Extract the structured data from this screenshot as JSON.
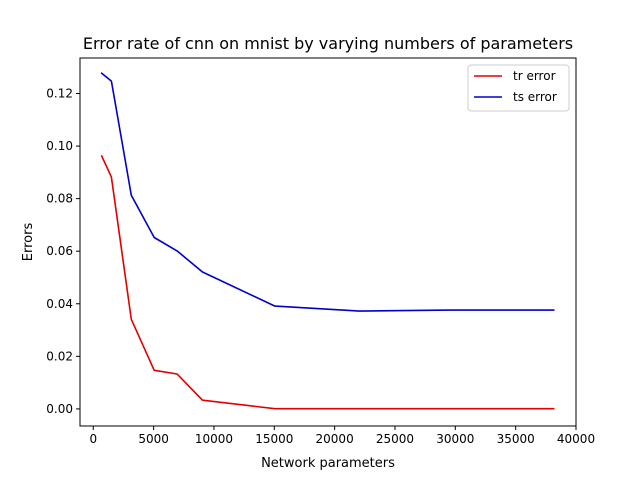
{
  "chart_data": {
    "type": "line",
    "title": "Error rate of cnn on mnist by varying numbers of parameters",
    "xlabel": "Network parameters",
    "ylabel": "Errors",
    "xlim": [
      -1100,
      40000
    ],
    "ylim": [
      -0.0065,
      0.1335
    ],
    "x_ticks": [
      0,
      5000,
      10000,
      15000,
      20000,
      25000,
      30000,
      35000,
      40000
    ],
    "y_ticks": [
      0.0,
      0.02,
      0.04,
      0.06,
      0.08,
      0.1,
      0.12
    ],
    "x_tick_labels": [
      "0",
      "5000",
      "10000",
      "15000",
      "20000",
      "25000",
      "30000",
      "35000",
      "40000"
    ],
    "y_tick_labels": [
      "0.00",
      "0.02",
      "0.04",
      "0.06",
      "0.08",
      "0.10",
      "0.12"
    ],
    "grid": false,
    "legend_position": "top-right",
    "series": [
      {
        "name": "tr error",
        "color": "#e00000",
        "x": [
          700,
          1500,
          3150,
          5050,
          6950,
          9050,
          15050,
          22050,
          29550,
          38150
        ],
        "y": [
          0.0962,
          0.0882,
          0.0341,
          0.0147,
          0.0133,
          0.0033,
          0.0001,
          0.0001,
          0.0001,
          0.0001
        ]
      },
      {
        "name": "ts error",
        "color": "#0000cc",
        "x": [
          700,
          1500,
          3150,
          5050,
          6950,
          9050,
          15050,
          22050,
          29550,
          38150
        ],
        "y": [
          0.1277,
          0.1247,
          0.0813,
          0.0652,
          0.0601,
          0.0521,
          0.0391,
          0.0372,
          0.0376,
          0.0376
        ]
      }
    ]
  }
}
